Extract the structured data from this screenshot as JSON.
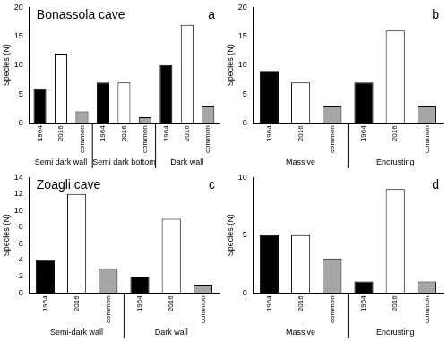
{
  "chart_data": [
    {
      "type": "bar",
      "panel": "a",
      "title": "Bonassola cave",
      "y_label": "Species (N)",
      "categories": [
        "1964",
        "2016",
        "common",
        "1964",
        "2016",
        "common",
        "1964",
        "2016",
        "common"
      ],
      "groups": [
        "Semi dark wall",
        "Semi dark bottom",
        "Dark wall"
      ],
      "values": [
        6,
        12,
        2,
        7,
        7,
        1,
        10,
        17,
        3
      ],
      "colors": [
        "#000000",
        "#ffffff",
        "#a6a6a6",
        "#000000",
        "#ffffff",
        "#a6a6a6",
        "#000000",
        "#ffffff",
        "#a6a6a6"
      ],
      "ylim": [
        0,
        20
      ],
      "yticks": [
        0,
        5,
        10,
        15,
        20
      ],
      "grid": false
    },
    {
      "type": "bar",
      "panel": "b",
      "y_label": "Species (N)",
      "categories": [
        "1964",
        "2016",
        "common",
        "1964",
        "2016",
        "common"
      ],
      "groups": [
        "Massive",
        "Encrusting"
      ],
      "values": [
        9,
        7,
        3,
        7,
        16,
        3
      ],
      "colors": [
        "#000000",
        "#ffffff",
        "#a6a6a6",
        "#000000",
        "#ffffff",
        "#a6a6a6"
      ],
      "ylim": [
        0,
        20
      ],
      "yticks": [
        0,
        5,
        10,
        15,
        20
      ],
      "grid": false
    },
    {
      "type": "bar",
      "panel": "c",
      "title": "Zoagli cave",
      "y_label": "Species (N)",
      "categories": [
        "1964",
        "2016",
        "common",
        "1964",
        "2016",
        "common"
      ],
      "groups": [
        "Semi-dark wall",
        "Dark wall"
      ],
      "values": [
        4,
        12,
        3,
        2,
        9,
        1
      ],
      "colors": [
        "#000000",
        "#ffffff",
        "#a6a6a6",
        "#000000",
        "#ffffff",
        "#a6a6a6"
      ],
      "ylim": [
        0,
        14
      ],
      "yticks": [
        0,
        2,
        4,
        6,
        8,
        10,
        12,
        14
      ],
      "grid": false
    },
    {
      "type": "bar",
      "panel": "d",
      "y_label": "Species (N)",
      "categories": [
        "1964",
        "2016",
        "common",
        "1964",
        "2016",
        "common"
      ],
      "groups": [
        "Massive",
        "Encrusting"
      ],
      "values": [
        5,
        5,
        3,
        1,
        9,
        1
      ],
      "colors": [
        "#000000",
        "#ffffff",
        "#a6a6a6",
        "#000000",
        "#ffffff",
        "#a6a6a6"
      ],
      "ylim": [
        0,
        10
      ],
      "yticks": [
        0,
        5,
        10
      ],
      "grid": false
    }
  ]
}
